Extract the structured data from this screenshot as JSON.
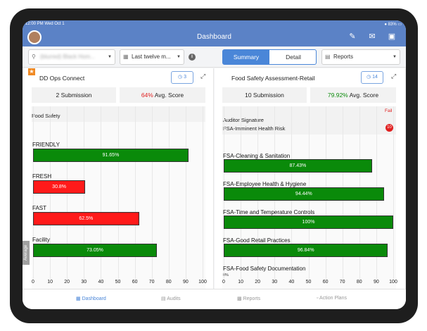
{
  "status": {
    "time": "12:00 PM Wed Oct 1",
    "battery": "83%"
  },
  "nav": {
    "title": "Dashboard"
  },
  "filters": {
    "location": "(blurred) Black Hom...",
    "date_range": "Last twelve m...",
    "view_summary": "Summary",
    "view_detail": "Detail",
    "reports": "Reports"
  },
  "left_panel": {
    "title": "DD Ops Connect",
    "badge": "3",
    "submissions": "2 Submission",
    "avg_score_value": "64%",
    "avg_score_label": " Avg. Score",
    "section_header": "Food Safety",
    "average_tab": "Average",
    "chart_data": {
      "type": "bar",
      "orientation": "horizontal",
      "categories": [
        "FRIENDLY",
        "FRESH",
        "FAST",
        "Facility"
      ],
      "values": [
        91.65,
        30.8,
        62.5,
        73.05
      ],
      "value_labels": [
        "91.65%",
        "30.8%",
        "62.5%",
        "73.05%"
      ],
      "colors": [
        "#0a8a0a",
        "#ff1a1a",
        "#ff1a1a",
        "#0a8a0a"
      ],
      "xlim": [
        0,
        100
      ],
      "ticks": [
        "0",
        "10",
        "20",
        "30",
        "40",
        "50",
        "60",
        "70",
        "80",
        "90",
        "100"
      ]
    }
  },
  "right_panel": {
    "title": "Food Safety Assessment-Retail",
    "badge": "14",
    "submissions": "10 Submission",
    "avg_score_value": "79.92%",
    "avg_score_label": " Avg. Score",
    "fail_label": "Fail",
    "auditor_signature": "Auditor Signature",
    "imminent_risk": "FSA-Imminent Health Risk",
    "risk_count": "10",
    "truncated_label": "0%",
    "chart_data": {
      "type": "bar",
      "orientation": "horizontal",
      "categories": [
        "FSA-Cleaning & Sanitation",
        "FSA-Employee Health & Hygiene",
        "FSA-Time and Temperature Controls",
        "FSA-Good Retail Practices",
        "FSA-Food Safety Documentation"
      ],
      "values": [
        87.43,
        94.44,
        100,
        96.84,
        null
      ],
      "value_labels": [
        "87.43%",
        "94.44%",
        "100%",
        "96.84%",
        ""
      ],
      "colors": [
        "#0a8a0a",
        "#0a8a0a",
        "#0a8a0a",
        "#0a8a0a",
        "#0a8a0a"
      ],
      "xlim": [
        0,
        100
      ],
      "ticks": [
        "0",
        "10",
        "20",
        "30",
        "40",
        "50",
        "60",
        "70",
        "80",
        "90",
        "100"
      ]
    }
  },
  "bottom_nav": {
    "dashboard": "Dashboard",
    "audits": "Audits",
    "reports": "Reports",
    "action_plans": "Action Plans"
  }
}
